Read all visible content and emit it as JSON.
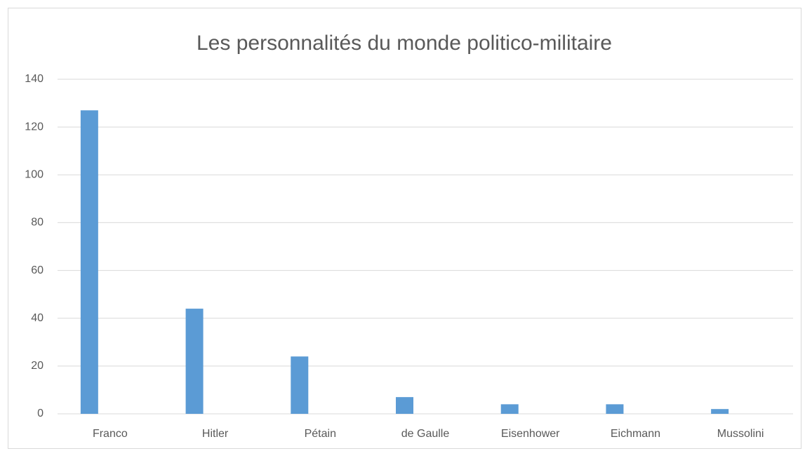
{
  "chart_data": {
    "type": "bar",
    "title": "Les personnalités du monde politico-militaire",
    "categories": [
      "Franco",
      "Hitler",
      "Pétain",
      "de Gaulle",
      "Eisenhower",
      "Eichmann",
      "Mussolini"
    ],
    "values": [
      127,
      44,
      24,
      7,
      4,
      4,
      2
    ],
    "color": "#5b9bd5",
    "ylim": [
      0,
      140
    ],
    "yticks": [
      0,
      20,
      40,
      60,
      80,
      100,
      120,
      140
    ],
    "grid": true
  }
}
